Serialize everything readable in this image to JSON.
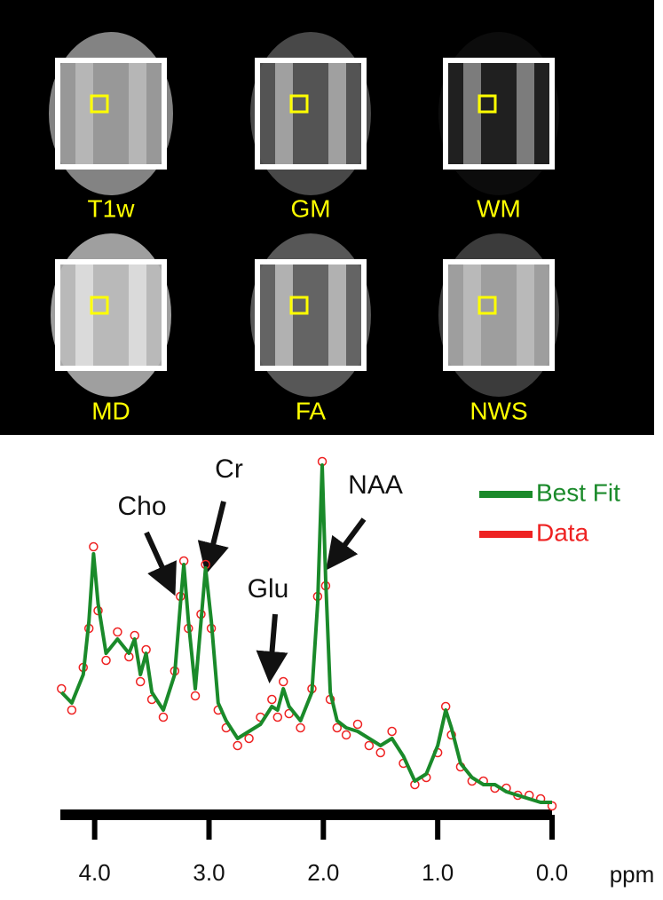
{
  "image_panels": [
    "T1w",
    "GM",
    "WM",
    "MD",
    "FA",
    "NWS"
  ],
  "chart_data": {
    "type": "line",
    "x_label": "ppm",
    "xlim": [
      4.3,
      0
    ],
    "xticks": [
      {
        "value": 4,
        "label": "4.0"
      },
      {
        "value": 3,
        "label": "3.0"
      },
      {
        "value": 2,
        "label": "2.0"
      },
      {
        "value": 1,
        "label": "1.0"
      },
      {
        "value": 0,
        "label": "0.0"
      }
    ],
    "ylim": [
      0,
      100
    ],
    "legend": "upper right",
    "annotations": [
      {
        "text": "Cho",
        "x": 3.22
      },
      {
        "text": "Cr",
        "x": 3.03
      },
      {
        "text": "Glu",
        "x": 2.4
      },
      {
        "text": "NAA",
        "x": 2.01
      }
    ],
    "x": [
      4.29,
      4.2,
      4.1,
      4.05,
      4.01,
      3.97,
      3.9,
      3.8,
      3.7,
      3.65,
      3.6,
      3.55,
      3.5,
      3.4,
      3.3,
      3.25,
      3.22,
      3.18,
      3.12,
      3.07,
      3.03,
      2.98,
      2.92,
      2.85,
      2.75,
      2.65,
      2.55,
      2.45,
      2.4,
      2.35,
      2.3,
      2.2,
      2.1,
      2.05,
      2.01,
      1.98,
      1.94,
      1.88,
      1.8,
      1.7,
      1.6,
      1.5,
      1.4,
      1.3,
      1.2,
      1.1,
      1.0,
      0.93,
      0.88,
      0.8,
      0.7,
      0.6,
      0.5,
      0.4,
      0.3,
      0.2,
      0.1,
      0.0
    ],
    "series": [
      {
        "name": "Best Fit",
        "color": "#1a8a2a",
        "style": "line",
        "values": [
          35,
          32,
          40,
          55,
          74,
          60,
          46,
          50,
          46,
          50,
          40,
          46,
          35,
          30,
          40,
          60,
          71,
          55,
          36,
          55,
          70,
          55,
          32,
          27,
          22,
          24,
          26,
          31,
          30,
          36,
          31,
          27,
          35,
          60,
          99,
          67,
          35,
          27,
          25,
          24,
          22,
          20,
          22,
          17,
          10,
          12,
          20,
          30,
          25,
          15,
          11,
          9,
          9,
          7,
          6,
          5,
          4,
          4
        ]
      },
      {
        "name": "Data",
        "color": "#ee2222",
        "style": "markers",
        "values": [
          36,
          30,
          42,
          53,
          76,
          58,
          44,
          52,
          45,
          51,
          38,
          47,
          33,
          28,
          41,
          62,
          72,
          53,
          34,
          57,
          71,
          53,
          30,
          25,
          20,
          22,
          28,
          33,
          28,
          38,
          29,
          25,
          36,
          62,
          100,
          65,
          33,
          25,
          23,
          26,
          20,
          18,
          24,
          15,
          9,
          11,
          18,
          31,
          23,
          14,
          10,
          10,
          8,
          8,
          6,
          6,
          5,
          3
        ]
      }
    ]
  }
}
